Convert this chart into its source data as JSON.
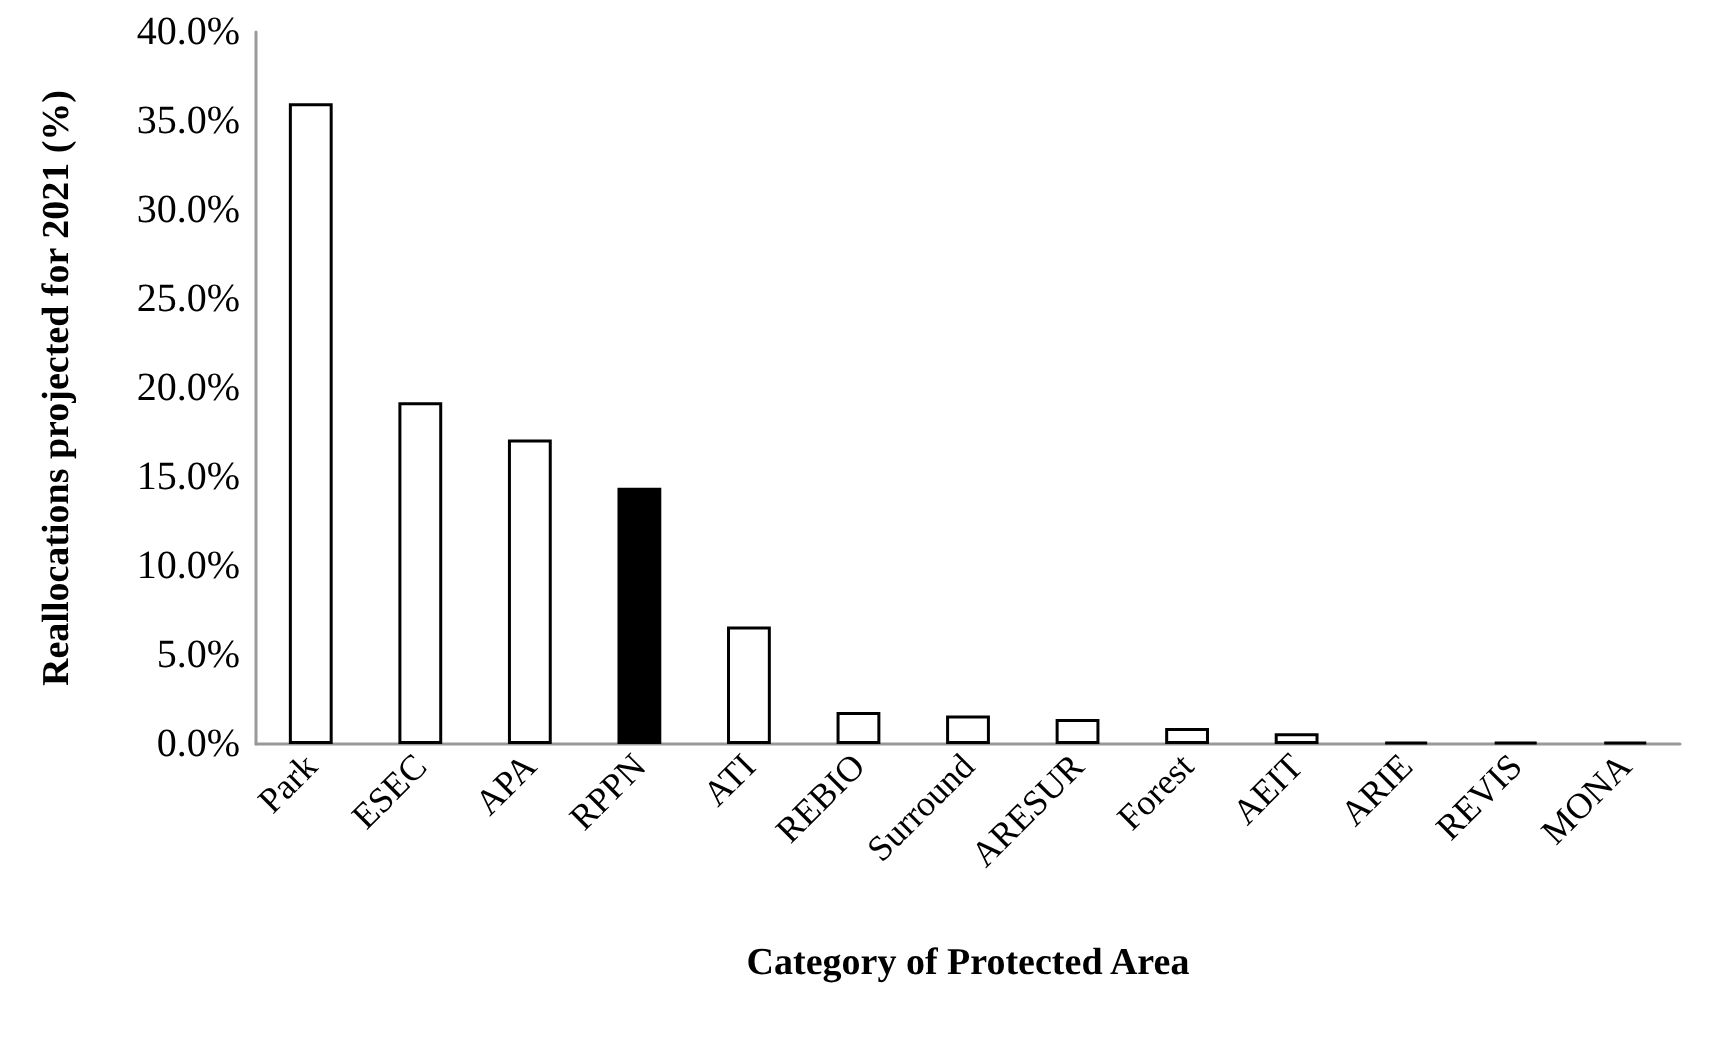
{
  "chart_data": {
    "type": "bar",
    "xlabel": "Category of Protected Area",
    "ylabel": "Reallocations projected for 2021 (%)",
    "categories": [
      "Park",
      "ESEC",
      "APA",
      "RPPN",
      "ATI",
      "REBIO",
      "Surround",
      "ARESUR",
      "Forest",
      "AEIT",
      "ARIE",
      "REVIS",
      "MONA"
    ],
    "values": [
      36.0,
      19.2,
      17.1,
      14.4,
      6.6,
      1.8,
      1.6,
      1.4,
      0.9,
      0.6,
      0.1,
      0.1,
      0.1
    ],
    "colors": [
      "#ffffff",
      "#ffffff",
      "#ffffff",
      "#000000",
      "#ffffff",
      "#ffffff",
      "#ffffff",
      "#ffffff",
      "#ffffff",
      "#ffffff",
      "#000000",
      "#000000",
      "#000000"
    ],
    "ylim": [
      0,
      40
    ],
    "yticks": [
      {
        "value": 0,
        "label": "0.0%"
      },
      {
        "value": 5,
        "label": "5.0%"
      },
      {
        "value": 10,
        "label": "10.0%"
      },
      {
        "value": 15,
        "label": "15.0%"
      },
      {
        "value": 20,
        "label": "20.0%"
      },
      {
        "value": 25,
        "label": "25.0%"
      },
      {
        "value": 30,
        "label": "30.0%"
      },
      {
        "value": 35,
        "label": "35.0%"
      },
      {
        "value": 40,
        "label": "40.0%"
      }
    ],
    "grid": false
  }
}
